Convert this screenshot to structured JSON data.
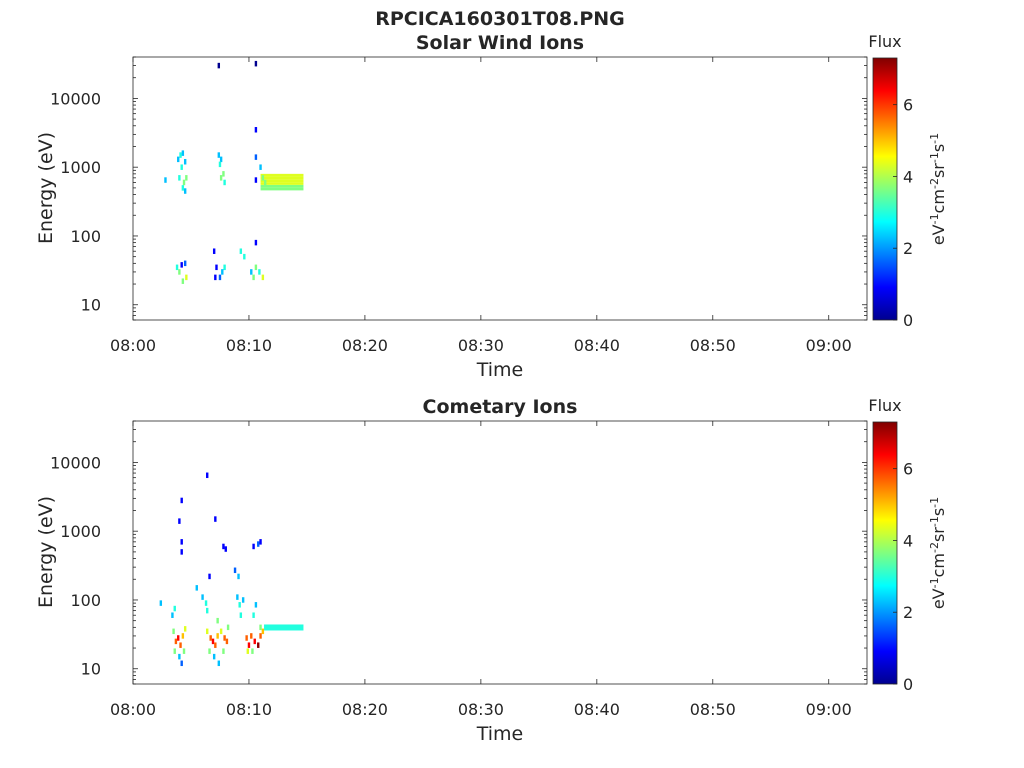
{
  "figure_title": "RPCICA160301T08.PNG",
  "colormap": [
    "#00008f",
    "#0000ff",
    "#0060ff",
    "#00c0ff",
    "#20ffdf",
    "#80ff80",
    "#dfff20",
    "#ffc000",
    "#ff6000",
    "#ff0000",
    "#8f0000"
  ],
  "chart_data": [
    {
      "type": "heatmap",
      "title": "Solar Wind Ions",
      "xlabel": "Time",
      "ylabel": "Energy (eV)",
      "x_ticks": [
        "08:00",
        "08:10",
        "08:20",
        "08:30",
        "08:40",
        "08:50",
        "09:00"
      ],
      "xlim_minutes": [
        0,
        63.3
      ],
      "y_scale": "log",
      "ylim": [
        6,
        40000
      ],
      "y_ticks": [
        {
          "value": 10,
          "label": "10"
        },
        {
          "value": 100,
          "label": "100"
        },
        {
          "value": 1000,
          "label": "1000"
        },
        {
          "value": 10000,
          "label": "10000"
        }
      ],
      "colorbar": {
        "title": "Flux",
        "label": "eV-1cm-2sr-1s-1",
        "range": [
          0,
          7.3
        ],
        "ticks": [
          "0",
          "2",
          "4",
          "6"
        ]
      },
      "cells": [
        [
          3.8,
          35,
          3
        ],
        [
          4.0,
          30,
          3.5
        ],
        [
          4.2,
          38,
          1
        ],
        [
          4.5,
          40,
          1.2
        ],
        [
          4.6,
          25,
          4.5
        ],
        [
          4.3,
          22,
          4
        ],
        [
          3.9,
          1300,
          2.5
        ],
        [
          4.1,
          1500,
          3
        ],
        [
          4.3,
          1600,
          2
        ],
        [
          4.5,
          1200,
          2.5
        ],
        [
          4.2,
          1000,
          2.8
        ],
        [
          4.0,
          700,
          3
        ],
        [
          4.4,
          600,
          3.5
        ],
        [
          4.6,
          700,
          4
        ],
        [
          4.3,
          500,
          3
        ],
        [
          4.5,
          450,
          2.5
        ],
        [
          2.8,
          650,
          2.5
        ],
        [
          7.0,
          60,
          0.5
        ],
        [
          7.2,
          35,
          1
        ],
        [
          7.1,
          25,
          0.8
        ],
        [
          7.5,
          25,
          1.5
        ],
        [
          7.7,
          30,
          2
        ],
        [
          7.9,
          35,
          3
        ],
        [
          7.6,
          1300,
          2.5
        ],
        [
          7.4,
          1500,
          2
        ],
        [
          7.5,
          1100,
          3
        ],
        [
          7.6,
          700,
          4
        ],
        [
          7.8,
          800,
          3.5
        ],
        [
          7.9,
          600,
          3
        ],
        [
          9.3,
          60,
          2.8
        ],
        [
          9.6,
          50,
          3
        ],
        [
          7.4,
          30000,
          0.3
        ],
        [
          10.2,
          30,
          2
        ],
        [
          10.4,
          25,
          3.5
        ],
        [
          10.6,
          35,
          4
        ],
        [
          10.9,
          30,
          3
        ],
        [
          11.2,
          25,
          4.2
        ],
        [
          10.6,
          80,
          1
        ],
        [
          10.6,
          3500,
          0.8
        ],
        [
          10.6,
          32000,
          0.3
        ],
        [
          10.6,
          1400,
          1.2
        ],
        [
          10.6,
          650,
          0.5
        ],
        [
          11.0,
          1000,
          2.5
        ],
        [
          11.2,
          700,
          3.5
        ],
        [
          11.4,
          600,
          4
        ]
      ],
      "bands": [
        {
          "t0": 11.0,
          "t1": 14.7,
          "e0": 460,
          "e1": 800,
          "level_low": 3.8,
          "level_high": 4.6
        }
      ]
    },
    {
      "type": "heatmap",
      "title": "Cometary Ions",
      "xlabel": "Time",
      "ylabel": "Energy (eV)",
      "x_ticks": [
        "08:00",
        "08:10",
        "08:20",
        "08:30",
        "08:40",
        "08:50",
        "09:00"
      ],
      "xlim_minutes": [
        0,
        63.3
      ],
      "y_scale": "log",
      "ylim": [
        6,
        40000
      ],
      "y_ticks": [
        {
          "value": 10,
          "label": "10"
        },
        {
          "value": 100,
          "label": "100"
        },
        {
          "value": 1000,
          "label": "1000"
        },
        {
          "value": 10000,
          "label": "10000"
        }
      ],
      "colorbar": {
        "title": "Flux",
        "label": "eV-1cm-2sr-1s-1",
        "range": [
          0,
          7.3
        ],
        "ticks": [
          "0",
          "2",
          "4",
          "6"
        ]
      },
      "cells": [
        [
          3.5,
          35,
          4
        ],
        [
          3.7,
          25,
          6
        ],
        [
          3.9,
          28,
          6.5
        ],
        [
          4.1,
          22,
          6
        ],
        [
          4.3,
          30,
          5
        ],
        [
          4.5,
          38,
          4.5
        ],
        [
          3.6,
          18,
          3.5
        ],
        [
          4.0,
          15,
          2
        ],
        [
          4.2,
          12,
          1.5
        ],
        [
          4.4,
          18,
          4
        ],
        [
          3.4,
          60,
          2.5
        ],
        [
          3.6,
          75,
          3
        ],
        [
          2.4,
          90,
          2.5
        ],
        [
          4.2,
          2800,
          0.5
        ],
        [
          4.0,
          1400,
          0.5
        ],
        [
          4.2,
          700,
          0.8
        ],
        [
          4.2,
          500,
          0.6
        ],
        [
          6.4,
          35,
          4.5
        ],
        [
          6.7,
          28,
          6
        ],
        [
          6.9,
          25,
          6.5
        ],
        [
          7.1,
          22,
          6
        ],
        [
          7.3,
          30,
          5
        ],
        [
          7.6,
          35,
          4.5
        ],
        [
          7.9,
          28,
          5.5
        ],
        [
          8.1,
          25,
          6
        ],
        [
          6.6,
          18,
          3.5
        ],
        [
          7.0,
          15,
          2
        ],
        [
          7.4,
          12,
          2
        ],
        [
          7.8,
          18,
          4
        ],
        [
          6.4,
          70,
          3
        ],
        [
          6.0,
          110,
          2.5
        ],
        [
          6.3,
          90,
          2.8
        ],
        [
          7.3,
          50,
          4
        ],
        [
          8.2,
          40,
          4
        ],
        [
          5.5,
          150,
          2
        ],
        [
          6.6,
          220,
          1
        ],
        [
          6.4,
          6500,
          0.6
        ],
        [
          7.1,
          1500,
          0.8
        ],
        [
          7.8,
          600,
          0.7
        ],
        [
          8.0,
          550,
          0.5
        ],
        [
          8.8,
          270,
          1.5
        ],
        [
          9.1,
          220,
          2
        ],
        [
          9.0,
          110,
          2.5
        ],
        [
          9.2,
          85,
          3
        ],
        [
          9.5,
          100,
          2.2
        ],
        [
          9.3,
          60,
          3
        ],
        [
          9.8,
          28,
          5.5
        ],
        [
          10.0,
          22,
          6.5
        ],
        [
          10.2,
          30,
          6
        ],
        [
          10.5,
          25,
          6.5
        ],
        [
          10.8,
          22,
          7
        ],
        [
          11.0,
          30,
          6
        ],
        [
          11.2,
          35,
          5
        ],
        [
          9.9,
          18,
          4.5
        ],
        [
          10.3,
          18,
          4
        ],
        [
          11.0,
          40,
          4
        ],
        [
          10.6,
          85,
          2
        ],
        [
          10.4,
          60,
          3
        ],
        [
          10.4,
          600,
          0.8
        ],
        [
          10.8,
          650,
          1.2
        ],
        [
          11.0,
          700,
          0.8
        ]
      ],
      "bands": [
        {
          "t0": 11.3,
          "t1": 14.7,
          "e0": 36,
          "e1": 44,
          "level_low": 3.0,
          "level_high": 3.0
        }
      ]
    }
  ]
}
